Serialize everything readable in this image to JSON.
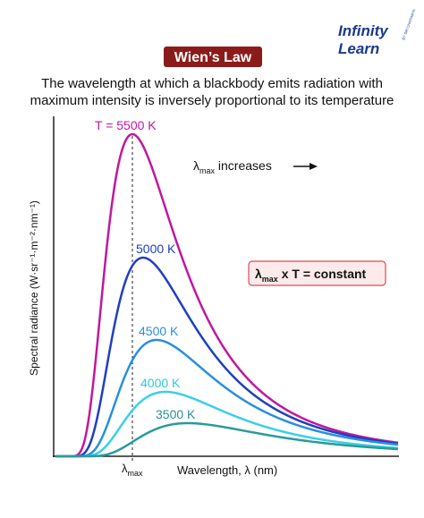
{
  "logo": {
    "line1": "Infinity",
    "line2": "Learn",
    "tagline": "BY SRI CHAITANYA"
  },
  "title": "Wien’s Law",
  "subtitle": [
    "The wavelength at which a blackbody emits radiation with",
    "maximum intensity is inversely proportional to its temperature"
  ],
  "curve_labels": [
    "T = 5500 K",
    "5000 K",
    "4500 K",
    "4000 K",
    "3500 K"
  ],
  "arrow_note": {
    "symbol": "λ",
    "subscript": "max",
    "text": " increases"
  },
  "formula": {
    "symbol": "λ",
    "subscript": "max",
    "text": " x T = constant"
  },
  "y_axis_label": "Spectral radiance (W·sr⁻¹·m⁻²·nm⁻¹)",
  "x_axis_label": "Wavelength, λ (nm)",
  "x_marker": {
    "symbol": "λ",
    "subscript": "max"
  }
}
